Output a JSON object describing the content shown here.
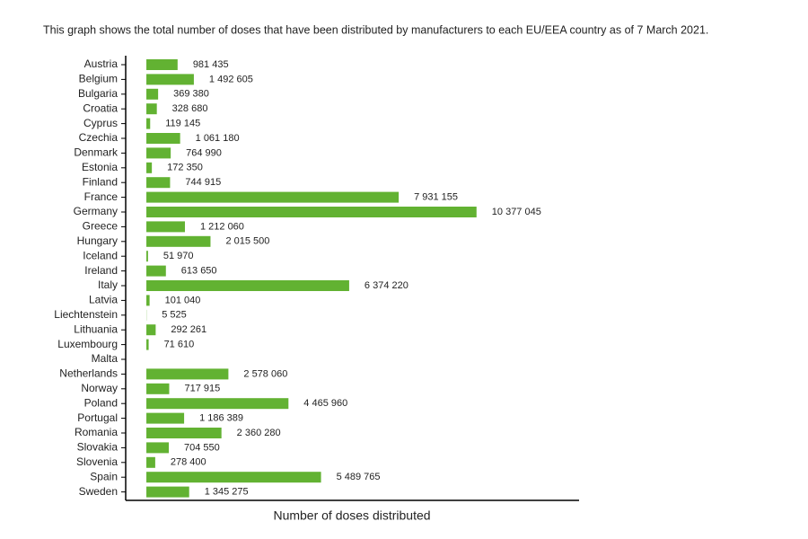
{
  "chart_data": {
    "type": "bar",
    "orientation": "horizontal",
    "subtitle": "This graph shows the total number of doses that have been distributed by manufacturers to each EU/EEA country as of 7 March 2021.",
    "x_label": "Number of doses distributed",
    "color": "#62b232",
    "categories": [
      "Austria",
      "Belgium",
      "Bulgaria",
      "Croatia",
      "Cyprus",
      "Czechia",
      "Denmark",
      "Estonia",
      "Finland",
      "France",
      "Germany",
      "Greece",
      "Hungary",
      "Iceland",
      "Ireland",
      "Italy",
      "Latvia",
      "Liechtenstein",
      "Lithuania",
      "Luxembourg",
      "Malta",
      "Netherlands",
      "Norway",
      "Poland",
      "Portugal",
      "Romania",
      "Slovakia",
      "Slovenia",
      "Spain",
      "Sweden"
    ],
    "values": [
      981435,
      1492605,
      369380,
      328680,
      119145,
      1061180,
      764990,
      172350,
      744915,
      7931155,
      10377045,
      1212060,
      2015500,
      51970,
      613650,
      6374220,
      101040,
      5525,
      292261,
      71610,
      null,
      2578060,
      717915,
      4465960,
      1186389,
      2360280,
      704550,
      278400,
      5489765,
      1345275
    ],
    "value_labels": [
      "981 435",
      "1 492 605",
      "369 380",
      "328 680",
      "119 145",
      "1 061 180",
      "764 990",
      "172 350",
      "744 915",
      "7 931 155",
      "10 377 045",
      "1 212 060",
      "2 015 500",
      "51 970",
      "613 650",
      "6 374 220",
      "101 040",
      "5 525",
      "292 261",
      "71 610",
      null,
      "2 578 060",
      "717 915",
      "4 465 960",
      "1 186 389",
      "2 360 280",
      "704 550",
      "278 400",
      "5 489 765",
      "1 345 275"
    ],
    "xlim": [
      -650000,
      13600000
    ]
  }
}
